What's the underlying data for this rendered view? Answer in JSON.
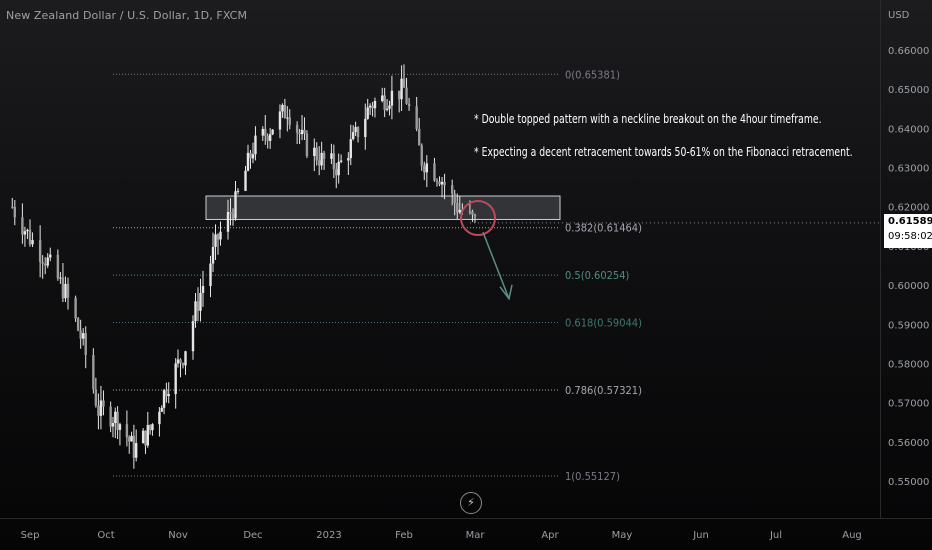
{
  "title": "New Zealand Dollar / U.S. Dollar, 1D, FXCM",
  "currency": "USD",
  "current_price": "0.61589",
  "countdown": "09:58:02",
  "annotations": [
    "* Double topped pattern with a neckline breakout on the 4hour timeframe.",
    "* Expecting a decent retracement towards 50-61% on the Fibonacci retracement."
  ],
  "colors": {
    "candle": "#e6e6e6",
    "fib_0": "#787b86",
    "fib_0382": "#a4a7b0",
    "fib_05": "#4e8c82",
    "fib_0618": "#3d7a70",
    "fib_0786": "#a4a7b0",
    "fib_1": "#787b86",
    "zone_fill": "#3a3b40",
    "circle": "#c0495a",
    "arrow": "#5a8f86"
  },
  "chart_data": {
    "type": "candlestick",
    "instrument": "New Zealand Dollar / U.S. Dollar",
    "timeframe": "1D",
    "source": "FXCM",
    "y_axis": {
      "ticks": [
        "0.66000",
        "0.65000",
        "0.64000",
        "0.63000",
        "0.62000",
        "0.61000",
        "0.60000",
        "0.59000",
        "0.58000",
        "0.57000",
        "0.56000",
        "0.55000"
      ],
      "range": [
        0.5465,
        0.6675
      ]
    },
    "x_axis": {
      "ticks": [
        "Sep",
        "Oct",
        "Nov",
        "Dec",
        "2023",
        "Feb",
        "Mar",
        "Apr",
        "May",
        "Jun",
        "Jul",
        "Aug"
      ]
    },
    "close_path": [
      [
        "2022-08-25",
        0.62
      ],
      [
        "2022-09-01",
        0.612
      ],
      [
        "2022-09-08",
        0.606
      ],
      [
        "2022-09-15",
        0.598
      ],
      [
        "2022-09-22",
        0.585
      ],
      [
        "2022-09-28",
        0.568
      ],
      [
        "2022-10-06",
        0.566
      ],
      [
        "2022-10-13",
        0.558
      ],
      [
        "2022-10-20",
        0.563
      ],
      [
        "2022-10-27",
        0.574
      ],
      [
        "2022-11-03",
        0.582
      ],
      [
        "2022-11-10",
        0.598
      ],
      [
        "2022-11-17",
        0.612
      ],
      [
        "2022-11-24",
        0.621
      ],
      [
        "2022-12-01",
        0.635
      ],
      [
        "2022-12-08",
        0.64
      ],
      [
        "2022-12-15",
        0.645
      ],
      [
        "2022-12-22",
        0.636
      ],
      [
        "2022-12-29",
        0.632
      ],
      [
        "2023-01-05",
        0.63
      ],
      [
        "2023-01-12",
        0.638
      ],
      [
        "2023-01-18",
        0.646
      ],
      [
        "2023-01-25",
        0.648
      ],
      [
        "2023-02-01",
        0.65
      ],
      [
        "2023-02-08",
        0.632
      ],
      [
        "2023-02-15",
        0.628
      ],
      [
        "2023-02-22",
        0.62
      ],
      [
        "2023-03-01",
        0.616
      ]
    ],
    "fibonacci": [
      {
        "ratio": "0",
        "price": 0.65381,
        "label": "0(0.65381)"
      },
      {
        "ratio": "0.382",
        "price": 0.61464,
        "label": "0.382(0.61464)"
      },
      {
        "ratio": "0.5",
        "price": 0.60254,
        "label": "0.5(0.60254)"
      },
      {
        "ratio": "0.618",
        "price": 0.59044,
        "label": "0.618(0.59044)"
      },
      {
        "ratio": "0.786",
        "price": 0.57321,
        "label": "0.786(0.57321)"
      },
      {
        "ratio": "1",
        "price": 0.55127,
        "label": "1(0.55127)"
      }
    ],
    "neckline_zone": {
      "low": 0.6193,
      "high": 0.6212
    },
    "projection": {
      "from": 0.6135,
      "to": 0.5965
    }
  }
}
